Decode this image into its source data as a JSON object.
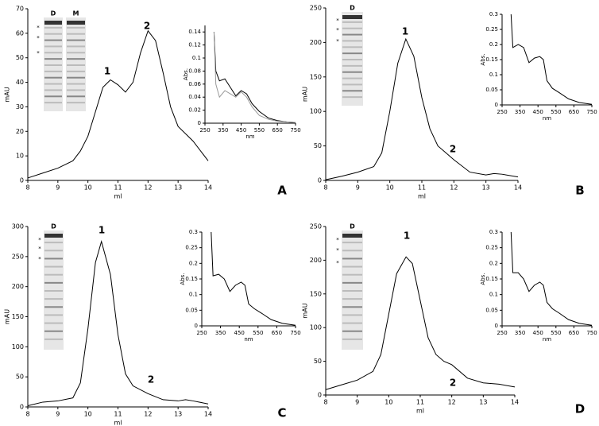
{
  "chart_data": [
    {
      "type": "line",
      "panel_label": "A",
      "x_label": "ml",
      "y_label": "mAU",
      "annotations": [
        "1",
        "2"
      ],
      "gel_lanes": [
        "D",
        "M"
      ],
      "gel_marks": [
        "*",
        "*",
        "*"
      ],
      "x": [
        8,
        8.5,
        9,
        9.5,
        9.75,
        10,
        10.25,
        10.5,
        10.75,
        11,
        11.25,
        11.5,
        11.75,
        12,
        12.25,
        12.5,
        12.75,
        13,
        13.5,
        14
      ],
      "series": [
        {
          "color": "#000000",
          "values": [
            1,
            3,
            5,
            8,
            12,
            18,
            28,
            38,
            41,
            39,
            36,
            40,
            52,
            61,
            57,
            44,
            30,
            22,
            16,
            8
          ]
        }
      ],
      "xlim": [
        8,
        14
      ],
      "xticks": [
        8,
        9,
        10,
        11,
        12,
        13,
        14
      ],
      "ylim": [
        0,
        70
      ],
      "yticks": [
        0,
        10,
        20,
        30,
        40,
        50,
        60,
        70
      ]
    },
    {
      "type": "line",
      "x_label": "nm",
      "y_label": "Abs.",
      "x": [
        300,
        310,
        330,
        360,
        390,
        420,
        450,
        480,
        510,
        550,
        600,
        650,
        700,
        750
      ],
      "series": [
        {
          "color": "#000000",
          "values": [
            0.14,
            0.08,
            0.065,
            0.068,
            0.055,
            0.042,
            0.05,
            0.045,
            0.03,
            0.018,
            0.008,
            0.004,
            0.002,
            0.001
          ]
        },
        {
          "color": "#999999",
          "values": [
            0.14,
            0.06,
            0.04,
            0.05,
            0.045,
            0.04,
            0.048,
            0.04,
            0.025,
            0.012,
            0.006,
            0.003,
            0.002,
            0.001
          ]
        }
      ],
      "xlim": [
        250,
        750
      ],
      "xticks": [
        250,
        350,
        450,
        550,
        650,
        750
      ],
      "ylim": [
        0,
        0.15
      ],
      "yticks": [
        0,
        0.02,
        0.04,
        0.06,
        0.08,
        0.1,
        0.12,
        0.14
      ]
    },
    {
      "type": "line",
      "panel_label": "B",
      "x_label": "ml",
      "y_label": "mAU",
      "annotations": [
        "1",
        "2"
      ],
      "gel_lanes": [
        "D"
      ],
      "gel_marks": [
        "*",
        "*",
        "*"
      ],
      "x": [
        8,
        8.5,
        9,
        9.5,
        9.75,
        10,
        10.25,
        10.5,
        10.75,
        11,
        11.25,
        11.5,
        11.75,
        12,
        12.5,
        13,
        13.25,
        13.5,
        14
      ],
      "series": [
        {
          "color": "#000000",
          "values": [
            1,
            6,
            12,
            20,
            40,
            100,
            170,
            205,
            180,
            120,
            75,
            50,
            40,
            30,
            12,
            8,
            10,
            9,
            5
          ]
        }
      ],
      "xlim": [
        8,
        14
      ],
      "xticks": [
        8,
        9,
        10,
        11,
        12,
        13,
        14
      ],
      "ylim": [
        0,
        250
      ],
      "yticks": [
        0,
        50,
        100,
        150,
        200,
        250
      ]
    },
    {
      "type": "line",
      "x_label": "nm",
      "y_label": "Abs.",
      "x": [
        300,
        310,
        340,
        370,
        400,
        430,
        460,
        480,
        500,
        530,
        570,
        620,
        680,
        750
      ],
      "series": [
        {
          "color": "#000000",
          "values": [
            0.3,
            0.19,
            0.2,
            0.19,
            0.14,
            0.155,
            0.16,
            0.15,
            0.08,
            0.055,
            0.04,
            0.02,
            0.008,
            0.002
          ]
        }
      ],
      "xlim": [
        250,
        750
      ],
      "xticks": [
        250,
        350,
        450,
        550,
        650,
        750
      ],
      "ylim": [
        0,
        0.3
      ],
      "yticks": [
        0,
        0.05,
        0.1,
        0.15,
        0.2,
        0.25,
        0.3
      ]
    },
    {
      "type": "line",
      "panel_label": "C",
      "x_label": "ml",
      "y_label": "mAU",
      "annotations": [
        "1",
        "2"
      ],
      "gel_lanes": [
        "D"
      ],
      "gel_marks": [
        "*",
        "*",
        "*"
      ],
      "x": [
        8,
        8.5,
        9,
        9.5,
        9.75,
        10,
        10.25,
        10.45,
        10.75,
        11,
        11.25,
        11.5,
        12,
        12.5,
        13,
        13.25,
        13.5,
        14
      ],
      "series": [
        {
          "color": "#000000",
          "values": [
            2,
            8,
            10,
            15,
            40,
            130,
            240,
            275,
            220,
            120,
            55,
            35,
            22,
            12,
            10,
            12,
            10,
            5
          ]
        }
      ],
      "xlim": [
        8,
        14
      ],
      "xticks": [
        8,
        9,
        10,
        11,
        12,
        13,
        14
      ],
      "ylim": [
        0,
        300
      ],
      "yticks": [
        0,
        50,
        100,
        150,
        200,
        250,
        300
      ]
    },
    {
      "type": "line",
      "x_label": "nm",
      "y_label": "Abs.",
      "x": [
        300,
        310,
        340,
        370,
        400,
        430,
        460,
        480,
        500,
        530,
        570,
        620,
        680,
        750
      ],
      "series": [
        {
          "color": "#000000",
          "values": [
            0.3,
            0.16,
            0.165,
            0.15,
            0.11,
            0.13,
            0.14,
            0.13,
            0.07,
            0.055,
            0.04,
            0.02,
            0.008,
            0.002
          ]
        }
      ],
      "xlim": [
        250,
        750
      ],
      "xticks": [
        250,
        350,
        450,
        550,
        650,
        750
      ],
      "ylim": [
        0,
        0.3
      ],
      "yticks": [
        0,
        0.05,
        0.1,
        0.15,
        0.2,
        0.25,
        0.3
      ]
    },
    {
      "type": "line",
      "panel_label": "D",
      "x_label": "ml",
      "y_label": "mAU",
      "annotations": [
        "1",
        "2"
      ],
      "gel_lanes": [
        "D"
      ],
      "gel_marks": [
        "*",
        "*",
        "*"
      ],
      "x": [
        8,
        8.5,
        9,
        9.5,
        9.75,
        10,
        10.25,
        10.55,
        10.75,
        11,
        11.25,
        11.5,
        11.75,
        12,
        12.5,
        13,
        13.5,
        14
      ],
      "series": [
        {
          "color": "#000000",
          "values": [
            8,
            15,
            22,
            35,
            60,
            120,
            180,
            205,
            195,
            140,
            85,
            60,
            50,
            45,
            25,
            18,
            16,
            12
          ]
        }
      ],
      "xlim": [
        8,
        14
      ],
      "xticks": [
        8,
        9,
        10,
        11,
        12,
        13,
        14
      ],
      "ylim": [
        0,
        250
      ],
      "yticks": [
        0,
        50,
        100,
        150,
        200,
        250
      ]
    },
    {
      "type": "line",
      "x_label": "nm",
      "y_label": "Abs.",
      "x": [
        300,
        310,
        340,
        370,
        400,
        430,
        460,
        480,
        500,
        530,
        570,
        620,
        680,
        750
      ],
      "series": [
        {
          "color": "#000000",
          "values": [
            0.3,
            0.17,
            0.17,
            0.15,
            0.11,
            0.13,
            0.14,
            0.13,
            0.075,
            0.055,
            0.04,
            0.02,
            0.008,
            0.002
          ]
        }
      ],
      "xlim": [
        250,
        750
      ],
      "xticks": [
        250,
        350,
        450,
        550,
        650,
        750
      ],
      "ylim": [
        0,
        0.3
      ],
      "yticks": [
        0,
        0.05,
        0.1,
        0.15,
        0.2,
        0.25,
        0.3
      ]
    }
  ]
}
